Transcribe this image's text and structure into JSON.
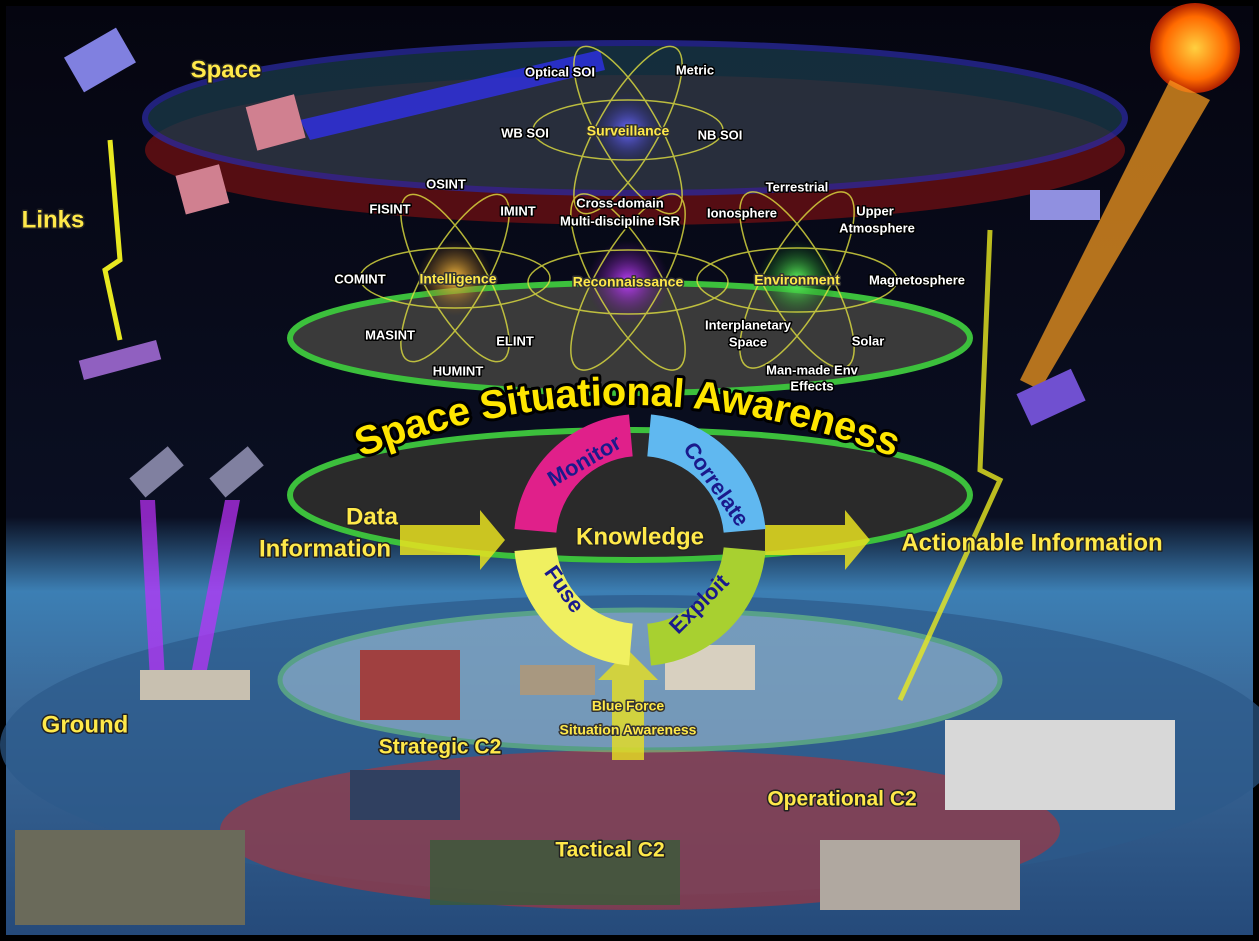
{
  "layers": {
    "space": "Space",
    "links": "Links",
    "ground": "Ground"
  },
  "surveillance": {
    "name": "Surveillance",
    "items": [
      "Optical SOI",
      "Metric",
      "WB SOI",
      "NB SOI"
    ]
  },
  "cross_domain": [
    "Cross-domain",
    "Multi-discipline ISR"
  ],
  "intelligence": {
    "name": "Intelligence",
    "items": [
      "OSINT",
      "FISINT",
      "IMINT",
      "COMINT",
      "MASINT",
      "ELINT",
      "HUMINT"
    ]
  },
  "reconnaissance": {
    "name": "Reconnaissance"
  },
  "environment": {
    "name": "Environment",
    "items": [
      "Terrestrial",
      "Ionosphere",
      [
        "Upper",
        "Atmosphere"
      ],
      "Magnetosphere",
      [
        "Interplanetary",
        "Space"
      ],
      "Solar",
      [
        "Man-made Env",
        "Effects"
      ]
    ]
  },
  "title": "Space Situational Awareness",
  "cycle": [
    "Monitor",
    "Correlate",
    "Exploit",
    "Fuse"
  ],
  "center": "Knowledge",
  "input": [
    "Data",
    "Information"
  ],
  "output": "Actionable Information",
  "blue_force": [
    "Blue Force",
    "Situation Awareness"
  ],
  "c2": [
    "Strategic C2",
    "Operational C2",
    "Tactical C2"
  ]
}
